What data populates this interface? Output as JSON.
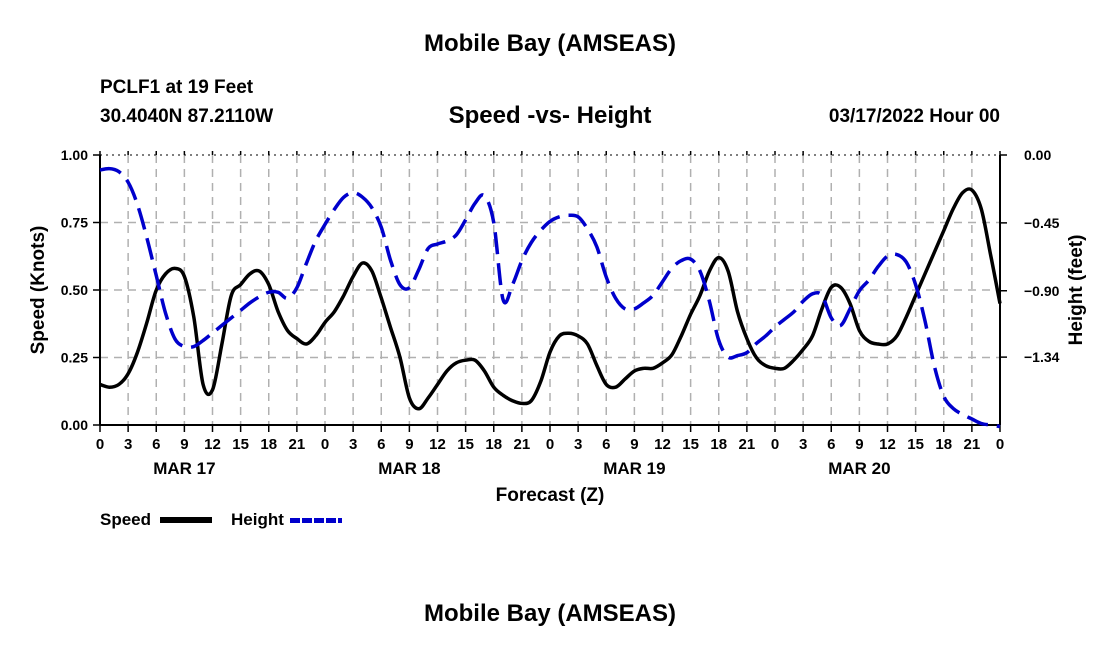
{
  "header": {
    "title": "Mobile Bay (AMSEAS)",
    "station": "PCLF1 at 19 Feet",
    "coords": "30.4040N  87.2110W",
    "subtitle": "Speed -vs- Height",
    "datetime": "03/17/2022 Hour 00"
  },
  "footer": {
    "title": "Mobile Bay (AMSEAS)"
  },
  "legend": {
    "speed_label": "Speed",
    "height_label": "Height"
  },
  "colors": {
    "speed": "#000000",
    "height": "#0000cc",
    "grid": "#b0b0b0"
  },
  "chart_data": {
    "type": "line",
    "title": "Speed -vs- Height",
    "xlabel": "Forecast (Z)",
    "ylabel": "Speed (Knots)",
    "y2label": "Height (feet)",
    "x_unit": "hours since 03/17/2022 00Z",
    "xlim": [
      0,
      96
    ],
    "ylim": [
      0,
      1
    ],
    "y2lim": [
      -1.79,
      0
    ],
    "x_ticks": [
      0,
      3,
      6,
      9,
      12,
      15,
      18,
      21,
      24,
      27,
      30,
      33,
      36,
      39,
      42,
      45,
      48,
      51,
      54,
      57,
      60,
      63,
      66,
      69,
      72,
      75,
      78,
      81,
      84,
      87,
      90,
      93,
      96
    ],
    "x_tick_labels": [
      "0",
      "3",
      "6",
      "9",
      "12",
      "15",
      "18",
      "21",
      "0",
      "3",
      "6",
      "9",
      "12",
      "15",
      "18",
      "21",
      "0",
      "3",
      "6",
      "9",
      "12",
      "15",
      "18",
      "21",
      "0",
      "3",
      "6",
      "9",
      "12",
      "15",
      "18",
      "21",
      "0"
    ],
    "day_labels": [
      {
        "x": 9,
        "label": "MAR 17"
      },
      {
        "x": 33,
        "label": "MAR 18"
      },
      {
        "x": 57,
        "label": "MAR 19"
      },
      {
        "x": 81,
        "label": "MAR 20"
      }
    ],
    "y_ticks": [
      0,
      0.25,
      0.5,
      0.75,
      1.0
    ],
    "y_tick_labels": [
      "0.00",
      "0.25",
      "0.50",
      "0.75",
      "1.00"
    ],
    "y2_ticks": [
      0,
      -0.45,
      -0.9,
      -1.34
    ],
    "y2_tick_labels": [
      "0.00",
      "−0.45",
      "−0.90",
      "−1.34"
    ],
    "grid": true,
    "legend_position": "bottom-left",
    "series": [
      {
        "name": "Speed",
        "axis": "left",
        "style": "solid",
        "x": [
          0,
          1,
          2,
          3,
          4,
          5,
          6,
          7,
          8,
          9,
          10,
          11,
          12,
          13,
          14,
          15,
          16,
          17,
          18,
          19,
          20,
          21,
          22,
          23,
          24,
          25,
          26,
          27,
          28,
          29,
          30,
          31,
          32,
          33,
          34,
          35,
          36,
          37,
          38,
          39,
          40,
          41,
          42,
          43,
          44,
          45,
          46,
          47,
          48,
          49,
          50,
          51,
          52,
          53,
          54,
          55,
          56,
          57,
          58,
          59,
          60,
          61,
          62,
          63,
          64,
          65,
          66,
          67,
          68,
          69,
          70,
          71,
          72,
          73,
          74,
          75,
          76,
          77,
          78,
          79,
          80,
          81,
          82,
          83,
          84,
          85,
          86,
          87,
          88,
          89,
          90,
          91,
          92,
          93,
          94,
          95,
          96
        ],
        "values": [
          0.15,
          0.14,
          0.15,
          0.19,
          0.27,
          0.38,
          0.5,
          0.56,
          0.58,
          0.55,
          0.4,
          0.15,
          0.13,
          0.3,
          0.48,
          0.52,
          0.56,
          0.57,
          0.52,
          0.42,
          0.35,
          0.32,
          0.3,
          0.33,
          0.38,
          0.42,
          0.48,
          0.55,
          0.6,
          0.57,
          0.47,
          0.36,
          0.25,
          0.1,
          0.06,
          0.1,
          0.15,
          0.2,
          0.23,
          0.24,
          0.24,
          0.2,
          0.14,
          0.11,
          0.09,
          0.08,
          0.09,
          0.16,
          0.27,
          0.33,
          0.34,
          0.33,
          0.3,
          0.22,
          0.15,
          0.14,
          0.17,
          0.2,
          0.21,
          0.21,
          0.23,
          0.26,
          0.33,
          0.41,
          0.48,
          0.57,
          0.62,
          0.57,
          0.42,
          0.32,
          0.25,
          0.22,
          0.21,
          0.21,
          0.24,
          0.28,
          0.33,
          0.43,
          0.51,
          0.51,
          0.45,
          0.35,
          0.31,
          0.3,
          0.3,
          0.33,
          0.4,
          0.48,
          0.56,
          0.64,
          0.72,
          0.8,
          0.86,
          0.87,
          0.8,
          0.63,
          0.45
        ]
      },
      {
        "name": "Height",
        "axis": "right",
        "style": "dashed",
        "x": [
          0,
          1,
          2,
          3,
          4,
          5,
          6,
          7,
          8,
          9,
          10,
          11,
          12,
          13,
          14,
          15,
          16,
          17,
          18,
          19,
          20,
          21,
          22,
          23,
          24,
          25,
          26,
          27,
          28,
          29,
          30,
          31,
          32,
          33,
          34,
          35,
          36,
          37,
          38,
          39,
          40,
          41,
          42,
          43,
          44,
          45,
          46,
          47,
          48,
          49,
          50,
          51,
          52,
          53,
          54,
          55,
          56,
          57,
          58,
          59,
          60,
          61,
          62,
          63,
          64,
          65,
          66,
          67,
          68,
          69,
          70,
          71,
          72,
          73,
          74,
          75,
          76,
          77,
          78,
          79,
          80,
          81,
          82,
          83,
          84,
          85,
          86,
          87,
          88,
          89,
          90,
          91,
          92,
          93,
          94,
          95,
          96
        ],
        "values": [
          -0.1,
          -0.09,
          -0.11,
          -0.18,
          -0.33,
          -0.55,
          -0.8,
          -1.05,
          -1.22,
          -1.27,
          -1.27,
          -1.23,
          -1.18,
          -1.13,
          -1.08,
          -1.03,
          -0.98,
          -0.94,
          -0.91,
          -0.91,
          -0.95,
          -0.88,
          -0.72,
          -0.57,
          -0.46,
          -0.36,
          -0.28,
          -0.25,
          -0.28,
          -0.35,
          -0.48,
          -0.7,
          -0.86,
          -0.88,
          -0.76,
          -0.62,
          -0.59,
          -0.57,
          -0.53,
          -0.43,
          -0.32,
          -0.27,
          -0.45,
          -0.96,
          -0.86,
          -0.7,
          -0.58,
          -0.5,
          -0.44,
          -0.41,
          -0.4,
          -0.41,
          -0.49,
          -0.61,
          -0.81,
          -0.95,
          -1.02,
          -1.02,
          -0.98,
          -0.93,
          -0.84,
          -0.75,
          -0.7,
          -0.69,
          -0.77,
          -0.97,
          -1.23,
          -1.34,
          -1.33,
          -1.31,
          -1.25,
          -1.2,
          -1.14,
          -1.09,
          -1.04,
          -0.97,
          -0.92,
          -0.93,
          -1.08,
          -1.13,
          -1.02,
          -0.9,
          -0.83,
          -0.74,
          -0.67,
          -0.66,
          -0.71,
          -0.86,
          -1.1,
          -1.4,
          -1.6,
          -1.68,
          -1.72,
          -1.75,
          -1.78,
          -1.79,
          -1.8
        ]
      }
    ]
  }
}
